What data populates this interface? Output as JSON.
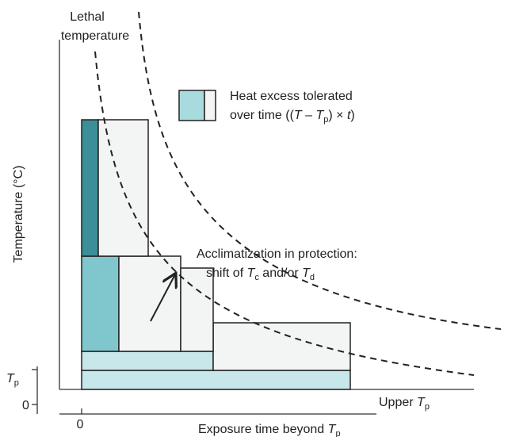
{
  "labels": {
    "lethal": [
      "Lethal",
      "temperature"
    ],
    "legend": {
      "line1": "Heat excess tolerated",
      "line2": [
        "over time ((",
        "T",
        " – ",
        "T",
        "p",
        ") × ",
        "t",
        ")"
      ]
    },
    "acclimatization": {
      "line1": "Acclimatization in protection:",
      "line2": [
        "shift of ",
        "T",
        "c",
        " and/or ",
        "T",
        "d"
      ]
    },
    "y_axis": "Temperature (°C)",
    "tp": [
      "T",
      "p"
    ],
    "zero_left": "0",
    "upper_tp": [
      "Upper ",
      "T",
      "p"
    ],
    "zero_bottom": "0",
    "x_axis": [
      "Exposure time beyond ",
      "T",
      "p"
    ]
  }
}
